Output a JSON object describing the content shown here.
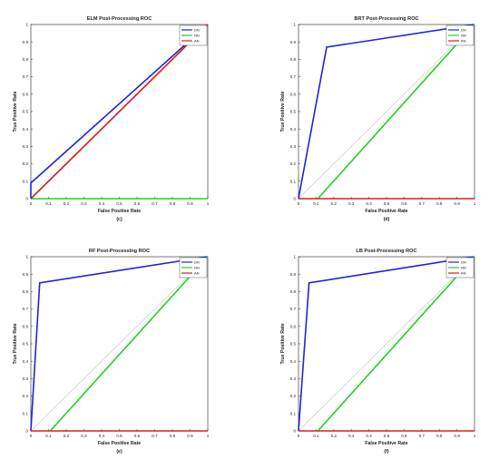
{
  "chart_data": [
    {
      "type": "line",
      "title": "ELM Post-Processing ROC",
      "xlabel": "False Positive Rate",
      "ylabel": "True Positive Rate",
      "caption": "(c)",
      "xlim": [
        0,
        1
      ],
      "ylim": [
        0,
        1
      ],
      "xticks": [
        "0",
        "0.1",
        "0.2",
        "0.3",
        "0.4",
        "0.5",
        "0.6",
        "0.7",
        "0.8",
        "0.9",
        "1"
      ],
      "yticks": [
        "0",
        "0.1",
        "0.2",
        "0.3",
        "0.4",
        "0.5",
        "0.6",
        "0.7",
        "0.8",
        "0.9",
        "1"
      ],
      "legend_position": "top-right",
      "diagonal": false,
      "series": [
        {
          "name": "DN",
          "color": "#1f23d8",
          "points": [
            [
              0,
              0
            ],
            [
              0,
              0.09
            ],
            [
              1,
              1
            ]
          ]
        },
        {
          "name": "NN",
          "color": "#22d022",
          "points": [
            [
              0,
              0
            ],
            [
              1,
              0
            ]
          ]
        },
        {
          "name": "AN",
          "color": "#d81f1f",
          "points": [
            [
              0,
              0
            ],
            [
              1,
              1
            ]
          ]
        }
      ]
    },
    {
      "type": "line",
      "title": "BRT Post-Processing ROC",
      "xlabel": "False Positive Rate",
      "ylabel": "True Positive Rate",
      "caption": "(d)",
      "xlim": [
        0,
        1
      ],
      "ylim": [
        0,
        1
      ],
      "xticks": [
        "0",
        "0.1",
        "0.2",
        "0.3",
        "0.4",
        "0.5",
        "0.6",
        "0.7",
        "0.8",
        "0.9",
        "1"
      ],
      "yticks": [
        "0",
        "0.1",
        "0.2",
        "0.3",
        "0.4",
        "0.5",
        "0.6",
        "0.7",
        "0.8",
        "0.9",
        "1"
      ],
      "legend_position": "top-right",
      "diagonal": true,
      "series": [
        {
          "name": "DN",
          "color": "#1f23d8",
          "points": [
            [
              0,
              0
            ],
            [
              0.16,
              0.87
            ],
            [
              1,
              1
            ]
          ]
        },
        {
          "name": "NN",
          "color": "#22d022",
          "points": [
            [
              0.11,
              0
            ],
            [
              1,
              1
            ]
          ]
        },
        {
          "name": "AN",
          "color": "#d81f1f",
          "points": [
            [
              0,
              0
            ],
            [
              1,
              0
            ]
          ]
        }
      ]
    },
    {
      "type": "line",
      "title": "RF Post-Processing ROC",
      "xlabel": "False Positive Rate",
      "ylabel": "True Positive Rate",
      "caption": "(e)",
      "xlim": [
        0,
        1
      ],
      "ylim": [
        0,
        1
      ],
      "xticks": [
        "0",
        "0.1",
        "0.2",
        "0.3",
        "0.4",
        "0.5",
        "0.6",
        "0.7",
        "0.8",
        "0.9",
        "1"
      ],
      "yticks": [
        "0",
        "0.1",
        "0.2",
        "0.3",
        "0.4",
        "0.5",
        "0.6",
        "0.7",
        "0.8",
        "0.9",
        "1"
      ],
      "legend_position": "top-right",
      "diagonal": true,
      "series": [
        {
          "name": "DN",
          "color": "#1f23d8",
          "points": [
            [
              0,
              0
            ],
            [
              0.05,
              0.85
            ],
            [
              1,
              1
            ]
          ]
        },
        {
          "name": "NN",
          "color": "#22d022",
          "points": [
            [
              0.11,
              0
            ],
            [
              1,
              1
            ]
          ]
        },
        {
          "name": "AN",
          "color": "#d81f1f",
          "points": [
            [
              0,
              0
            ],
            [
              1,
              0
            ]
          ]
        }
      ]
    },
    {
      "type": "line",
      "title": "LB Post-Processing ROC",
      "xlabel": "False Positive Rate",
      "ylabel": "True Positive Rate",
      "caption": "(f)",
      "xlim": [
        0,
        1
      ],
      "ylim": [
        0,
        1
      ],
      "xticks": [
        "0",
        "0.1",
        "0.2",
        "0.3",
        "0.4",
        "0.5",
        "0.6",
        "0.7",
        "0.8",
        "0.9",
        "1"
      ],
      "yticks": [
        "0",
        "0.1",
        "0.2",
        "0.3",
        "0.4",
        "0.5",
        "0.6",
        "0.7",
        "0.8",
        "0.9",
        "1"
      ],
      "legend_position": "top-right",
      "diagonal": true,
      "series": [
        {
          "name": "DN",
          "color": "#1f23d8",
          "points": [
            [
              0,
              0
            ],
            [
              0.06,
              0.85
            ],
            [
              1,
              1
            ]
          ]
        },
        {
          "name": "NN",
          "color": "#22d022",
          "points": [
            [
              0.11,
              0
            ],
            [
              1,
              1
            ]
          ]
        },
        {
          "name": "AN",
          "color": "#d81f1f",
          "points": [
            [
              0,
              0
            ],
            [
              1,
              0
            ]
          ]
        }
      ]
    }
  ]
}
